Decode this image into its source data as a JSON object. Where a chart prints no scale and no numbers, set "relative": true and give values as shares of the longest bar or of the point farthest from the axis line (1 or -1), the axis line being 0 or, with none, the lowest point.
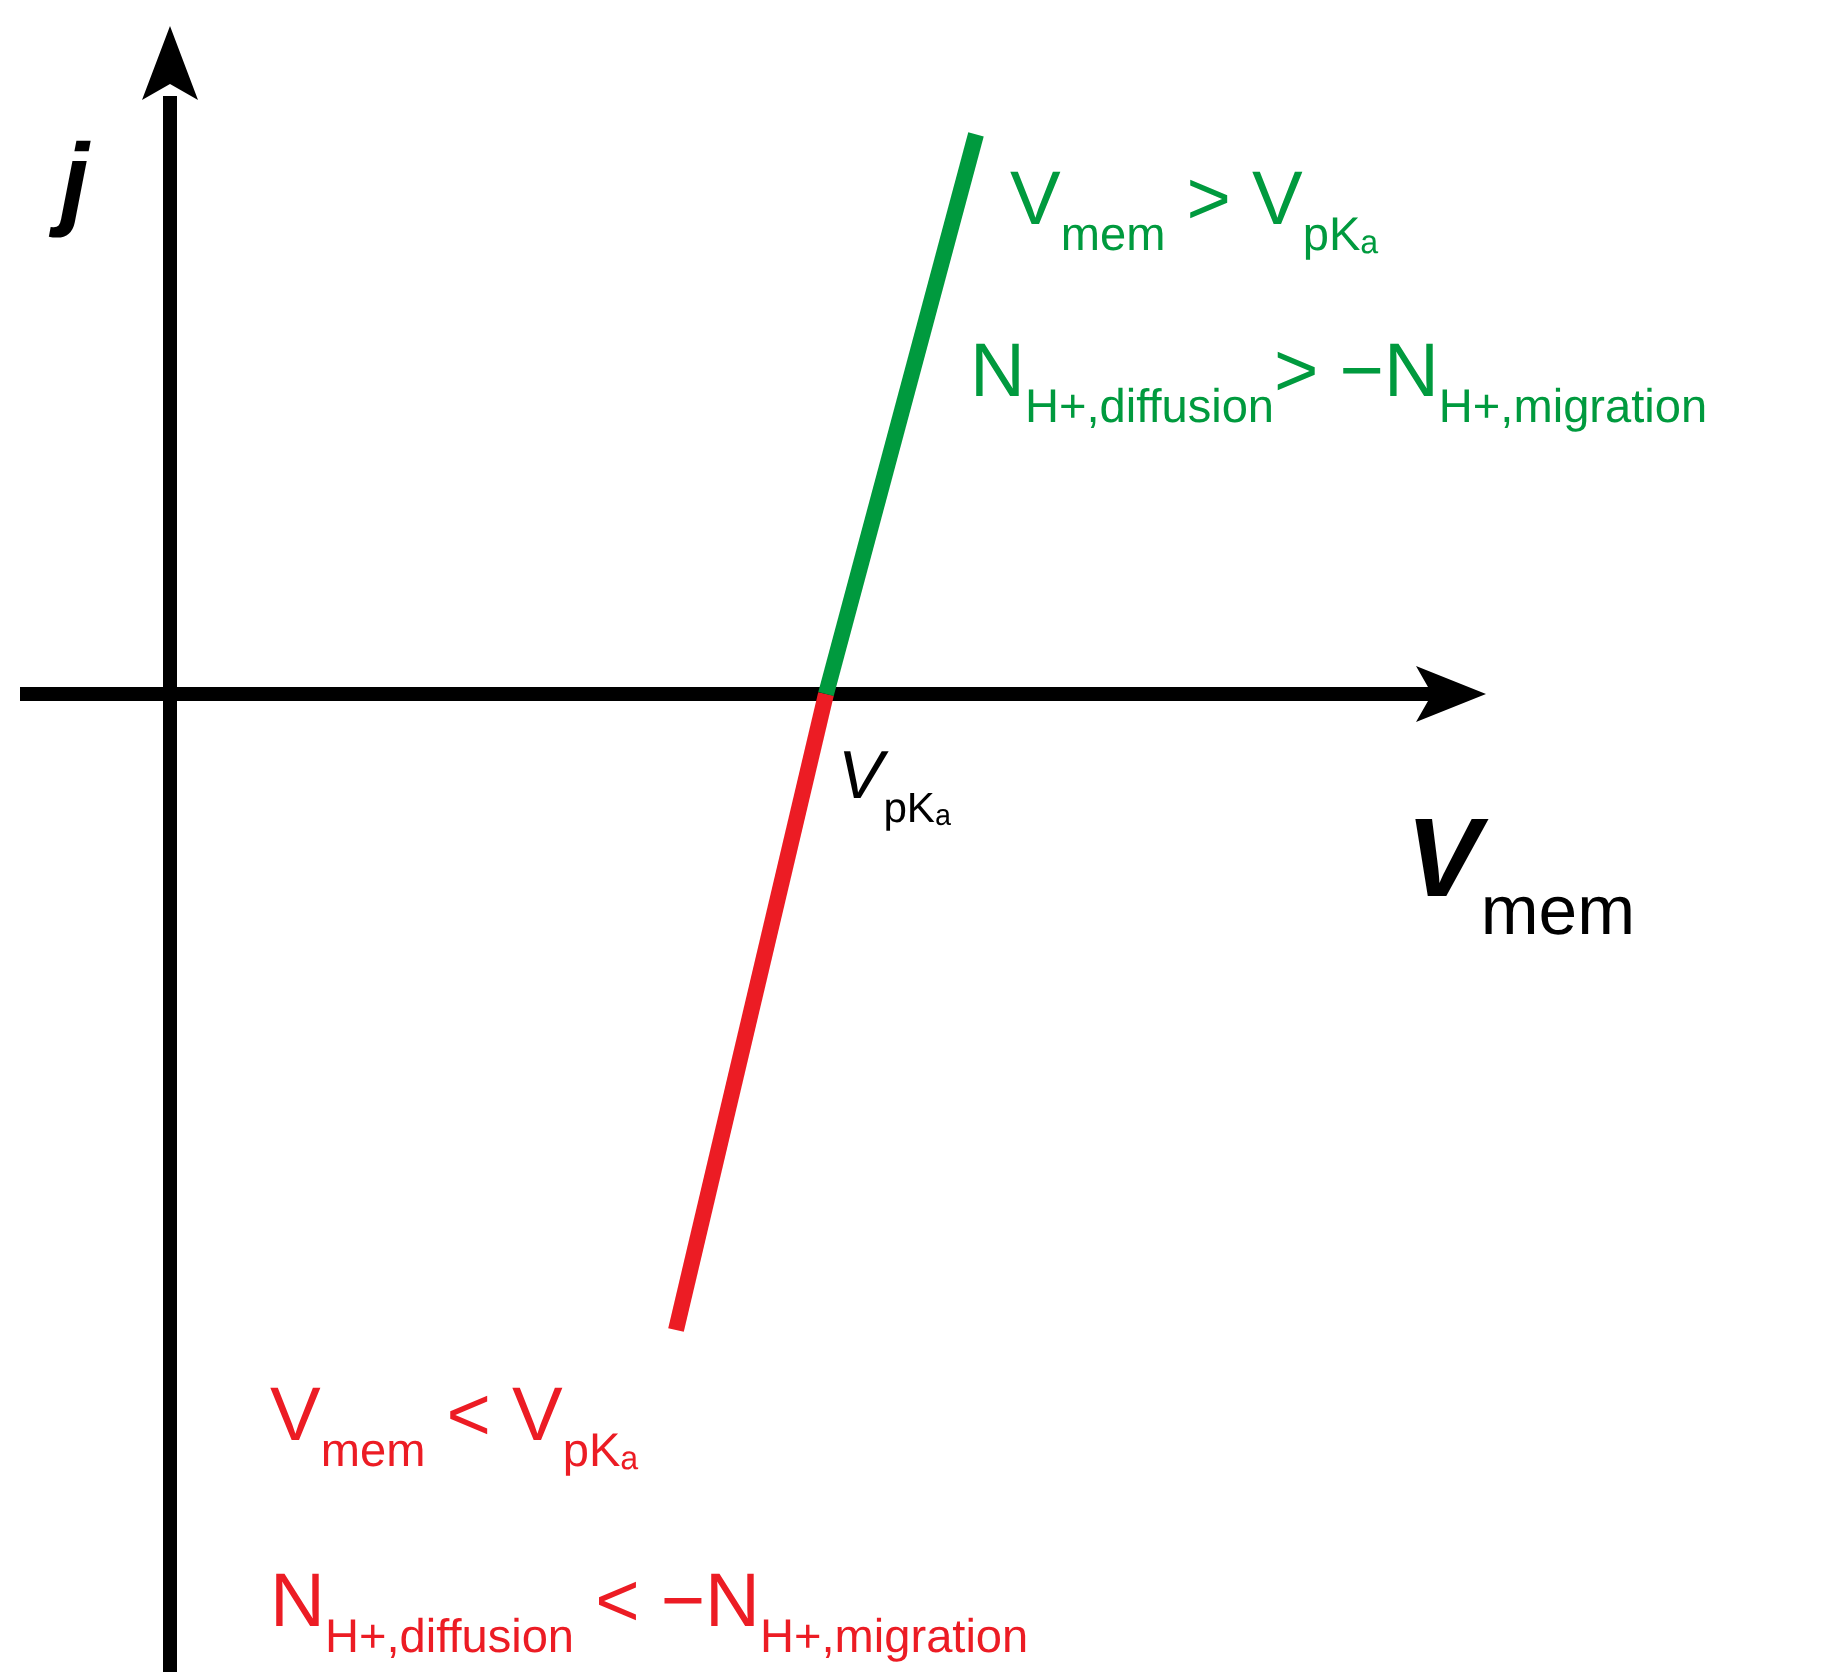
{
  "chart_data": {
    "type": "line",
    "relative": true,
    "xlabel": "V$_{mem}$",
    "ylabel": "j",
    "categories": [
      null,
      null,
      null
    ],
    "series": [
      {
        "color": "#ec1c24",
        "values": [
          -1,
          0,
          null
        ]
      },
      {
        "color": "#009a3e",
        "values": [
          null,
          0,
          0.88
        ]
      }
    ],
    "annotations": [
      "V$_{pKₐ}$",
      "V$_{mem}$ > V$_{pKₐ}$",
      "N$_{H+,diffusion}$> −N$_{H+,migration}$",
      "V$_{mem}$ < V$_{pKₐ}$",
      "N$_{H+,diffusion}$ < −N$_{H+,migration}$"
    ],
    "marker": "none",
    "line_style": "solid"
  }
}
